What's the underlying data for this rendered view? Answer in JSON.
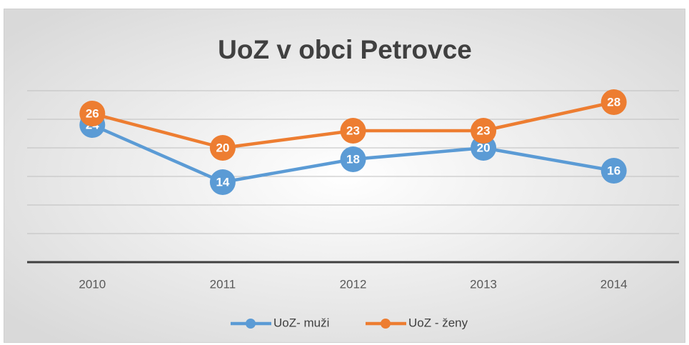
{
  "chart_data": {
    "type": "line",
    "title": "UoZ v obci Petrovce",
    "categories": [
      "2010",
      "2011",
      "2012",
      "2013",
      "2014"
    ],
    "series": [
      {
        "name": "UoZ- muži",
        "color": "#5b9bd5",
        "values": [
          24,
          14,
          18,
          20,
          16
        ]
      },
      {
        "name": "UoZ - ženy",
        "color": "#ed7d31",
        "values": [
          26,
          20,
          23,
          23,
          28
        ]
      }
    ],
    "ylim": [
      0,
      30
    ],
    "yticks": [
      0,
      5,
      10,
      15,
      20,
      25,
      30
    ],
    "grid": true,
    "legend": "bottom"
  }
}
